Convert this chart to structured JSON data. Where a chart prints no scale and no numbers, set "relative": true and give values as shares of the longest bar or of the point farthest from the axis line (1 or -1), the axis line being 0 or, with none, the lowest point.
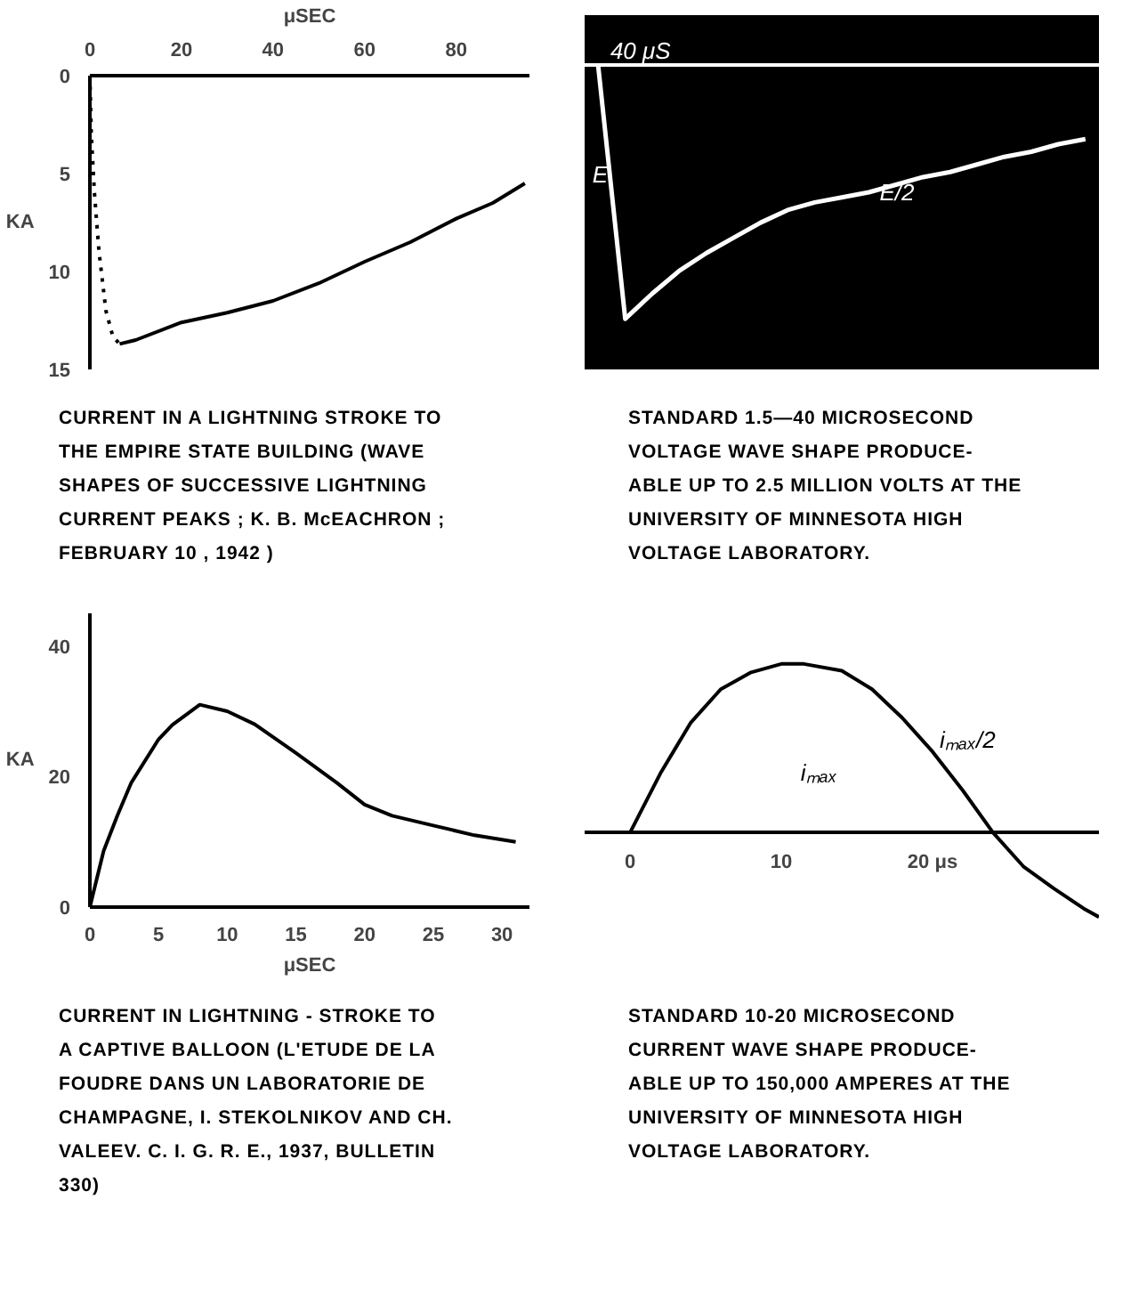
{
  "chart_data": [
    {
      "type": "line",
      "xlabel": "μSEC",
      "ylabel": "KA",
      "xlim": [
        0,
        96
      ],
      "xticks": [
        0,
        20,
        40,
        60,
        80
      ],
      "ylim": [
        15,
        0
      ],
      "yticks": [
        0,
        5,
        10,
        15
      ],
      "series": [
        {
          "color": "#000000",
          "line_style": "dotted",
          "x": [
            0,
            0.3,
            1,
            2,
            3.5,
            5,
            6.5
          ],
          "values": [
            0,
            3,
            6,
            9,
            12,
            13.3,
            13.7
          ]
        },
        {
          "color": "#000000",
          "line_style": "solid",
          "x": [
            6.5,
            10,
            20,
            30,
            40,
            50,
            60,
            70,
            80,
            88,
            95
          ],
          "values": [
            13.7,
            13.5,
            12.6,
            12.1,
            11.5,
            10.6,
            9.5,
            8.5,
            7.3,
            6.5,
            5.5
          ]
        }
      ],
      "title": "CURRENT IN A LIGHTNING STROKE TO THE EMPIRE STATE BUILDING (WAVE SHAPES OF SUCCESSIVE LIGHTNING CURRENT PEAKS ; K. B. McEACHRON ; FEBRUARY 10 , 1942 )"
    },
    {
      "type": "line",
      "relative": true,
      "categories": [
        null,
        null,
        null,
        null,
        null,
        null,
        null,
        null,
        null,
        null,
        null,
        null,
        null,
        null,
        null,
        null,
        null,
        null,
        null
      ],
      "series": [
        {
          "color": "#ffffff",
          "values": [
            0,
            -1,
            -0.9,
            -0.81,
            -0.74,
            -0.68,
            -0.62,
            -0.57,
            -0.54,
            -0.52,
            -0.5,
            -0.47,
            -0.44,
            -0.42,
            -0.39,
            -0.36,
            -0.34,
            -0.31,
            -0.29
          ]
        }
      ],
      "title": "STANDARD 1.5—40 MICROSECOND VOLTAGE WAVE SHAPE PRODUCE-ABLE UP TO 2.5 MILLION VOLTS AT THE UNIVERSITY OF MINNESOTA HIGH VOLTAGE LABORATORY.",
      "annotations": [
        "40 μS",
        "E",
        {
          "text": "E/2",
          "y": -0.5
        }
      ]
    },
    {
      "type": "line",
      "xlabel": "μSEC",
      "ylabel": "KA",
      "xlim": [
        0,
        32
      ],
      "xticks": [
        0,
        5,
        10,
        15,
        20,
        25,
        30
      ],
      "ylim": [
        0,
        45
      ],
      "yticks": [
        0,
        20,
        40
      ],
      "series": [
        {
          "color": "#000000",
          "x": [
            0,
            1,
            2,
            3,
            5,
            6,
            8,
            10,
            12,
            15,
            18,
            20,
            22,
            25,
            28,
            31
          ],
          "values": [
            0,
            8.6,
            14,
            19,
            25.7,
            27.9,
            31,
            30,
            28,
            23.6,
            19,
            15.7,
            14,
            12.5,
            11,
            10
          ]
        }
      ],
      "title": "CURRENT IN LIGHTNING - STROKE TO A CAPTIVE BALLOON (L'ETUDE DE LA FOUDRE DANS UN LABORATORIE DE CHAMPAGNE, I. STEKOLNIKOV AND CH. VALEEV. C. I. G. R. E., 1937, BULLETIN 330)"
    },
    {
      "type": "line",
      "relative": true,
      "xlim": [
        -3,
        31
      ],
      "xticks": [
        0,
        10,
        {
          "value": 20,
          "label": "20 μs"
        }
      ],
      "series": [
        {
          "color": "#000000",
          "x": [
            0,
            2,
            4,
            6,
            8,
            10,
            11.5,
            14,
            16,
            18,
            20,
            22,
            24,
            26,
            28,
            30,
            31
          ],
          "values": [
            0,
            0.35,
            0.65,
            0.85,
            0.95,
            1.0,
            1.0,
            0.96,
            0.85,
            0.68,
            0.48,
            0.25,
            0,
            -0.2,
            -0.33,
            -0.45,
            -0.5
          ]
        }
      ],
      "title": "STANDARD 10-20 MICROSECOND CURRENT WAVE SHAPE PRODUCE-ABLE UP TO 150,000 AMPERES AT THE UNIVERSITY OF MINNESOTA HIGH VOLTAGE LABORATORY.",
      "annotations": [
        "iₘₐₓ",
        {
          "text": "iₘₐₓ/2",
          "x": 20,
          "y": 0.55
        }
      ]
    }
  ]
}
